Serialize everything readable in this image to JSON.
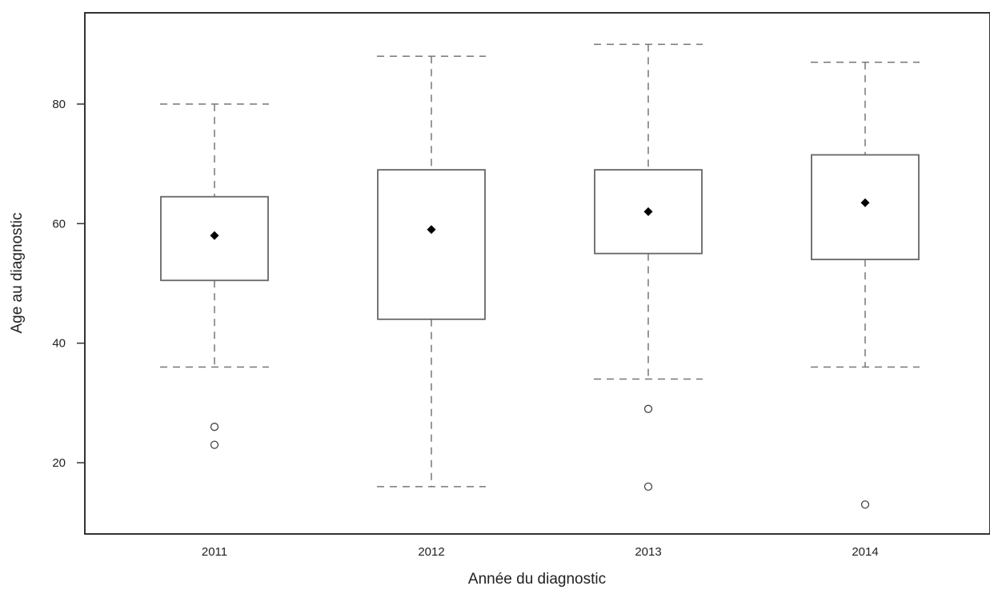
{
  "chart_data": {
    "type": "box",
    "title": "",
    "xlabel": "Année du diagnostic",
    "ylabel": "Age au diagnostic",
    "categories": [
      "2011",
      "2012",
      "2013",
      "2014"
    ],
    "y_ticks": [
      20,
      40,
      60,
      80
    ],
    "y_tick_labels": [
      "20",
      "40",
      "60",
      "80"
    ],
    "ylim": [
      8,
      97
    ],
    "grid": false,
    "legend": "none",
    "boxes": [
      {
        "category": "2011",
        "whisker_low": 36,
        "q1": 50.5,
        "q3": 64.5,
        "whisker_high": 80,
        "mean": 58,
        "outliers": [
          26,
          23
        ]
      },
      {
        "category": "2012",
        "whisker_low": 16,
        "q1": 44,
        "q3": 69,
        "whisker_high": 88,
        "mean": 59,
        "outliers": []
      },
      {
        "category": "2013",
        "whisker_low": 34,
        "q1": 55,
        "q3": 69,
        "whisker_high": 90,
        "mean": 62,
        "outliers": [
          29,
          16
        ]
      },
      {
        "category": "2014",
        "whisker_low": 36,
        "q1": 54,
        "q3": 71.5,
        "whisker_high": 87,
        "mean": 63.5,
        "outliers": [
          13
        ]
      }
    ],
    "colors": {
      "box": "#666666",
      "whisker": "#777777",
      "mean": "#000000",
      "axis": "#333333"
    }
  }
}
